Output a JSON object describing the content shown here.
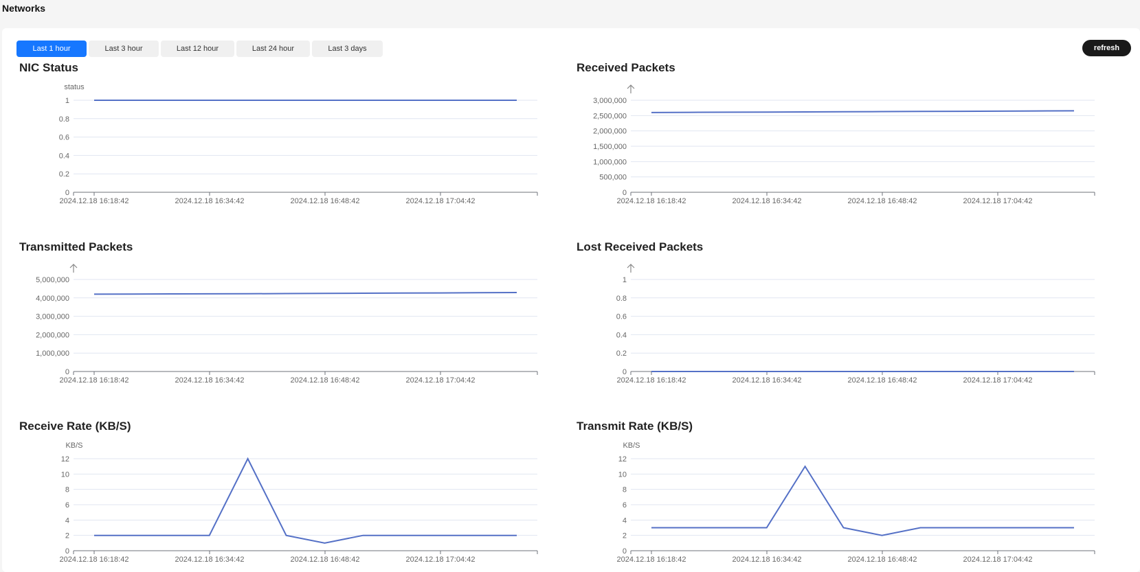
{
  "page": {
    "title": "Networks"
  },
  "toolbar": {
    "tabs": [
      "Last 1 hour",
      "Last 3 hour",
      "Last 12 hour",
      "Last 24 hour",
      "Last 3 days"
    ],
    "active_tab": "Last 1 hour",
    "refresh_label": "refresh"
  },
  "colors": {
    "line": "#5470c6",
    "grid": "#e0e6f1",
    "accent": "#1677ff"
  },
  "chart_data": [
    {
      "id": "nic",
      "type": "line",
      "title": "NIC Status",
      "ylabel": "status",
      "y_axis_icon": "",
      "ylim": [
        0,
        1
      ],
      "yticks": [
        "0",
        "0.2",
        "0.4",
        "0.6",
        "0.8",
        "1"
      ],
      "xlabels": [
        "2024.12.18 16:18:42",
        "2024.12.18 16:34:42",
        "2024.12.18 16:48:42",
        "2024.12.18 17:04:42"
      ],
      "values": [
        1,
        1,
        1,
        1,
        1,
        1,
        1,
        1,
        1,
        1,
        1,
        1
      ]
    },
    {
      "id": "rx",
      "type": "line",
      "title": "Received Packets",
      "ylabel": "",
      "y_axis_icon": "up-arrow-icon",
      "ylim": [
        0,
        3000000
      ],
      "yticks": [
        "0",
        "500,000",
        "1,000,000",
        "1,500,000",
        "2,000,000",
        "2,500,000",
        "3,000,000"
      ],
      "xlabels": [
        "2024.12.18 16:18:42",
        "2024.12.18 16:34:42",
        "2024.12.18 16:48:42",
        "2024.12.18 17:04:42"
      ],
      "values": [
        2600000,
        2605000,
        2610000,
        2615000,
        2620000,
        2625000,
        2630000,
        2635000,
        2640000,
        2645000,
        2650000,
        2655000
      ]
    },
    {
      "id": "tx",
      "type": "line",
      "title": "Transmitted Packets",
      "ylabel": "",
      "y_axis_icon": "up-arrow-icon",
      "ylim": [
        0,
        5000000
      ],
      "yticks": [
        "0",
        "1,000,000",
        "2,000,000",
        "3,000,000",
        "4,000,000",
        "5,000,000"
      ],
      "xlabels": [
        "2024.12.18 16:18:42",
        "2024.12.18 16:34:42",
        "2024.12.18 16:48:42",
        "2024.12.18 17:04:42"
      ],
      "values": [
        4200000,
        4210000,
        4215000,
        4220000,
        4225000,
        4235000,
        4245000,
        4255000,
        4260000,
        4270000,
        4280000,
        4290000
      ]
    },
    {
      "id": "lost",
      "type": "line",
      "title": "Lost Received Packets",
      "ylabel": "",
      "y_axis_icon": "up-arrow-icon",
      "ylim": [
        0,
        1
      ],
      "yticks": [
        "0",
        "0.2",
        "0.4",
        "0.6",
        "0.8",
        "1"
      ],
      "xlabels": [
        "2024.12.18 16:18:42",
        "2024.12.18 16:34:42",
        "2024.12.18 16:48:42",
        "2024.12.18 17:04:42"
      ],
      "values": [
        0,
        0,
        0,
        0,
        0,
        0,
        0,
        0,
        0,
        0,
        0,
        0
      ]
    },
    {
      "id": "rxrate",
      "type": "line",
      "title": "Receive Rate (KB/S)",
      "ylabel": "KB/S",
      "y_axis_icon": "",
      "ylim": [
        0,
        12
      ],
      "yticks": [
        "0",
        "2",
        "4",
        "6",
        "8",
        "10",
        "12"
      ],
      "xlabels": [
        "2024.12.18 16:18:42",
        "2024.12.18 16:34:42",
        "2024.12.18 16:48:42",
        "2024.12.18 17:04:42"
      ],
      "values": [
        2,
        2,
        2,
        2,
        12,
        2,
        1,
        2,
        2,
        2,
        2,
        2
      ]
    },
    {
      "id": "txrate",
      "type": "line",
      "title": "Transmit Rate (KB/S)",
      "ylabel": "KB/S",
      "y_axis_icon": "",
      "ylim": [
        0,
        12
      ],
      "yticks": [
        "0",
        "2",
        "4",
        "6",
        "8",
        "10",
        "12"
      ],
      "xlabels": [
        "2024.12.18 16:18:42",
        "2024.12.18 16:34:42",
        "2024.12.18 16:48:42",
        "2024.12.18 17:04:42"
      ],
      "values": [
        3,
        3,
        3,
        3,
        11,
        3,
        2,
        3,
        3,
        3,
        3,
        3
      ]
    }
  ]
}
